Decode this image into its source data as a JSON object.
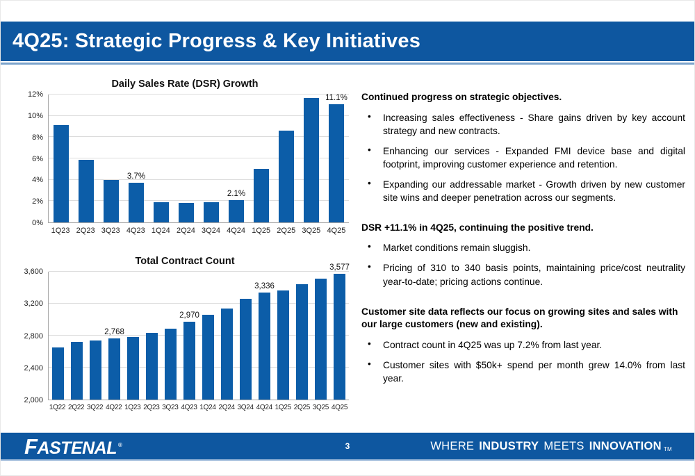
{
  "slide": {
    "title": "4Q25: Strategic Progress & Key Initiatives"
  },
  "colors": {
    "brand_blue": "#0e57a0",
    "bar_blue": "#0c5da8",
    "gridline_gray": "#dcdcdc"
  },
  "chart_data": [
    {
      "type": "bar",
      "title": "Daily Sales Rate (DSR) Growth",
      "categories": [
        "1Q23",
        "2Q23",
        "3Q23",
        "4Q23",
        "1Q24",
        "2Q24",
        "3Q24",
        "4Q24",
        "1Q25",
        "2Q25",
        "3Q25",
        "4Q25"
      ],
      "values": [
        9.1,
        5.9,
        4.0,
        3.7,
        1.9,
        1.8,
        1.9,
        2.1,
        5.0,
        8.6,
        11.7,
        11.1
      ],
      "ylim": [
        0,
        12
      ],
      "yticks": [
        0,
        2,
        4,
        6,
        8,
        10,
        12
      ],
      "ytick_labels": [
        "0%",
        "2%",
        "4%",
        "6%",
        "8%",
        "10%",
        "12%"
      ],
      "data_labels": {
        "3": "3.7%",
        "7": "2.1%",
        "11": "11.1%"
      },
      "xlabel": "",
      "ylabel": "",
      "grid": true,
      "legend": false
    },
    {
      "type": "bar",
      "title": "Total Contract Count",
      "categories": [
        "1Q22",
        "2Q22",
        "3Q22",
        "4Q22",
        "1Q23",
        "2Q23",
        "3Q23",
        "4Q23",
        "1Q24",
        "2Q24",
        "3Q24",
        "4Q24",
        "1Q25",
        "2Q25",
        "3Q25",
        "4Q25"
      ],
      "values": [
        2655,
        2720,
        2737,
        2768,
        2786,
        2831,
        2888,
        2970,
        3059,
        3142,
        3264,
        3336,
        3369,
        3443,
        3517,
        3577
      ],
      "ylim": [
        2000,
        3600
      ],
      "yticks": [
        2000,
        2400,
        2800,
        3200,
        3600
      ],
      "ytick_labels": [
        "2,000",
        "2,400",
        "2,800",
        "3,200",
        "3,600"
      ],
      "data_labels": {
        "3": "2,768",
        "7": "2,970",
        "11": "3,336",
        "15": "3,577"
      },
      "xlabel": "",
      "ylabel": "",
      "grid": true,
      "legend": false
    }
  ],
  "right_column": {
    "bullet_char": "•",
    "blocks": [
      {
        "heading": "Continued progress on strategic objectives.",
        "bullets": [
          "Increasing sales effectiveness - Share gains driven by key account strategy and new contracts.",
          "Enhancing our services - Expanded FMI device base and digital footprint, improving customer experience and retention.",
          "Expanding our addressable market - Growth driven by new customer site wins and deeper penetration across our segments."
        ]
      },
      {
        "heading": "DSR +11.1% in 4Q25, continuing the positive trend.",
        "bullets": [
          "Market conditions remain sluggish.",
          "Pricing of 310 to 340 basis points, maintaining price/cost neutrality year-to-date; pricing actions continue."
        ]
      },
      {
        "heading": "Customer site data reflects our focus on growing sites and sales with our large customers (new and existing).",
        "bullets": [
          "Contract count in 4Q25 was up 7.2% from last year.",
          "Customer sites with $50k+ spend per month grew 14.0% from last year."
        ]
      }
    ]
  },
  "footer": {
    "logo_text": "FASTENAL",
    "registered_mark": "®",
    "page_number": "3",
    "slogan": [
      {
        "text": "WHERE",
        "bold": false
      },
      {
        "text": "INDUSTRY",
        "bold": true
      },
      {
        "text": "MEETS",
        "bold": false
      },
      {
        "text": "INNOVATION",
        "bold": true
      }
    ],
    "trademark": "TM"
  }
}
